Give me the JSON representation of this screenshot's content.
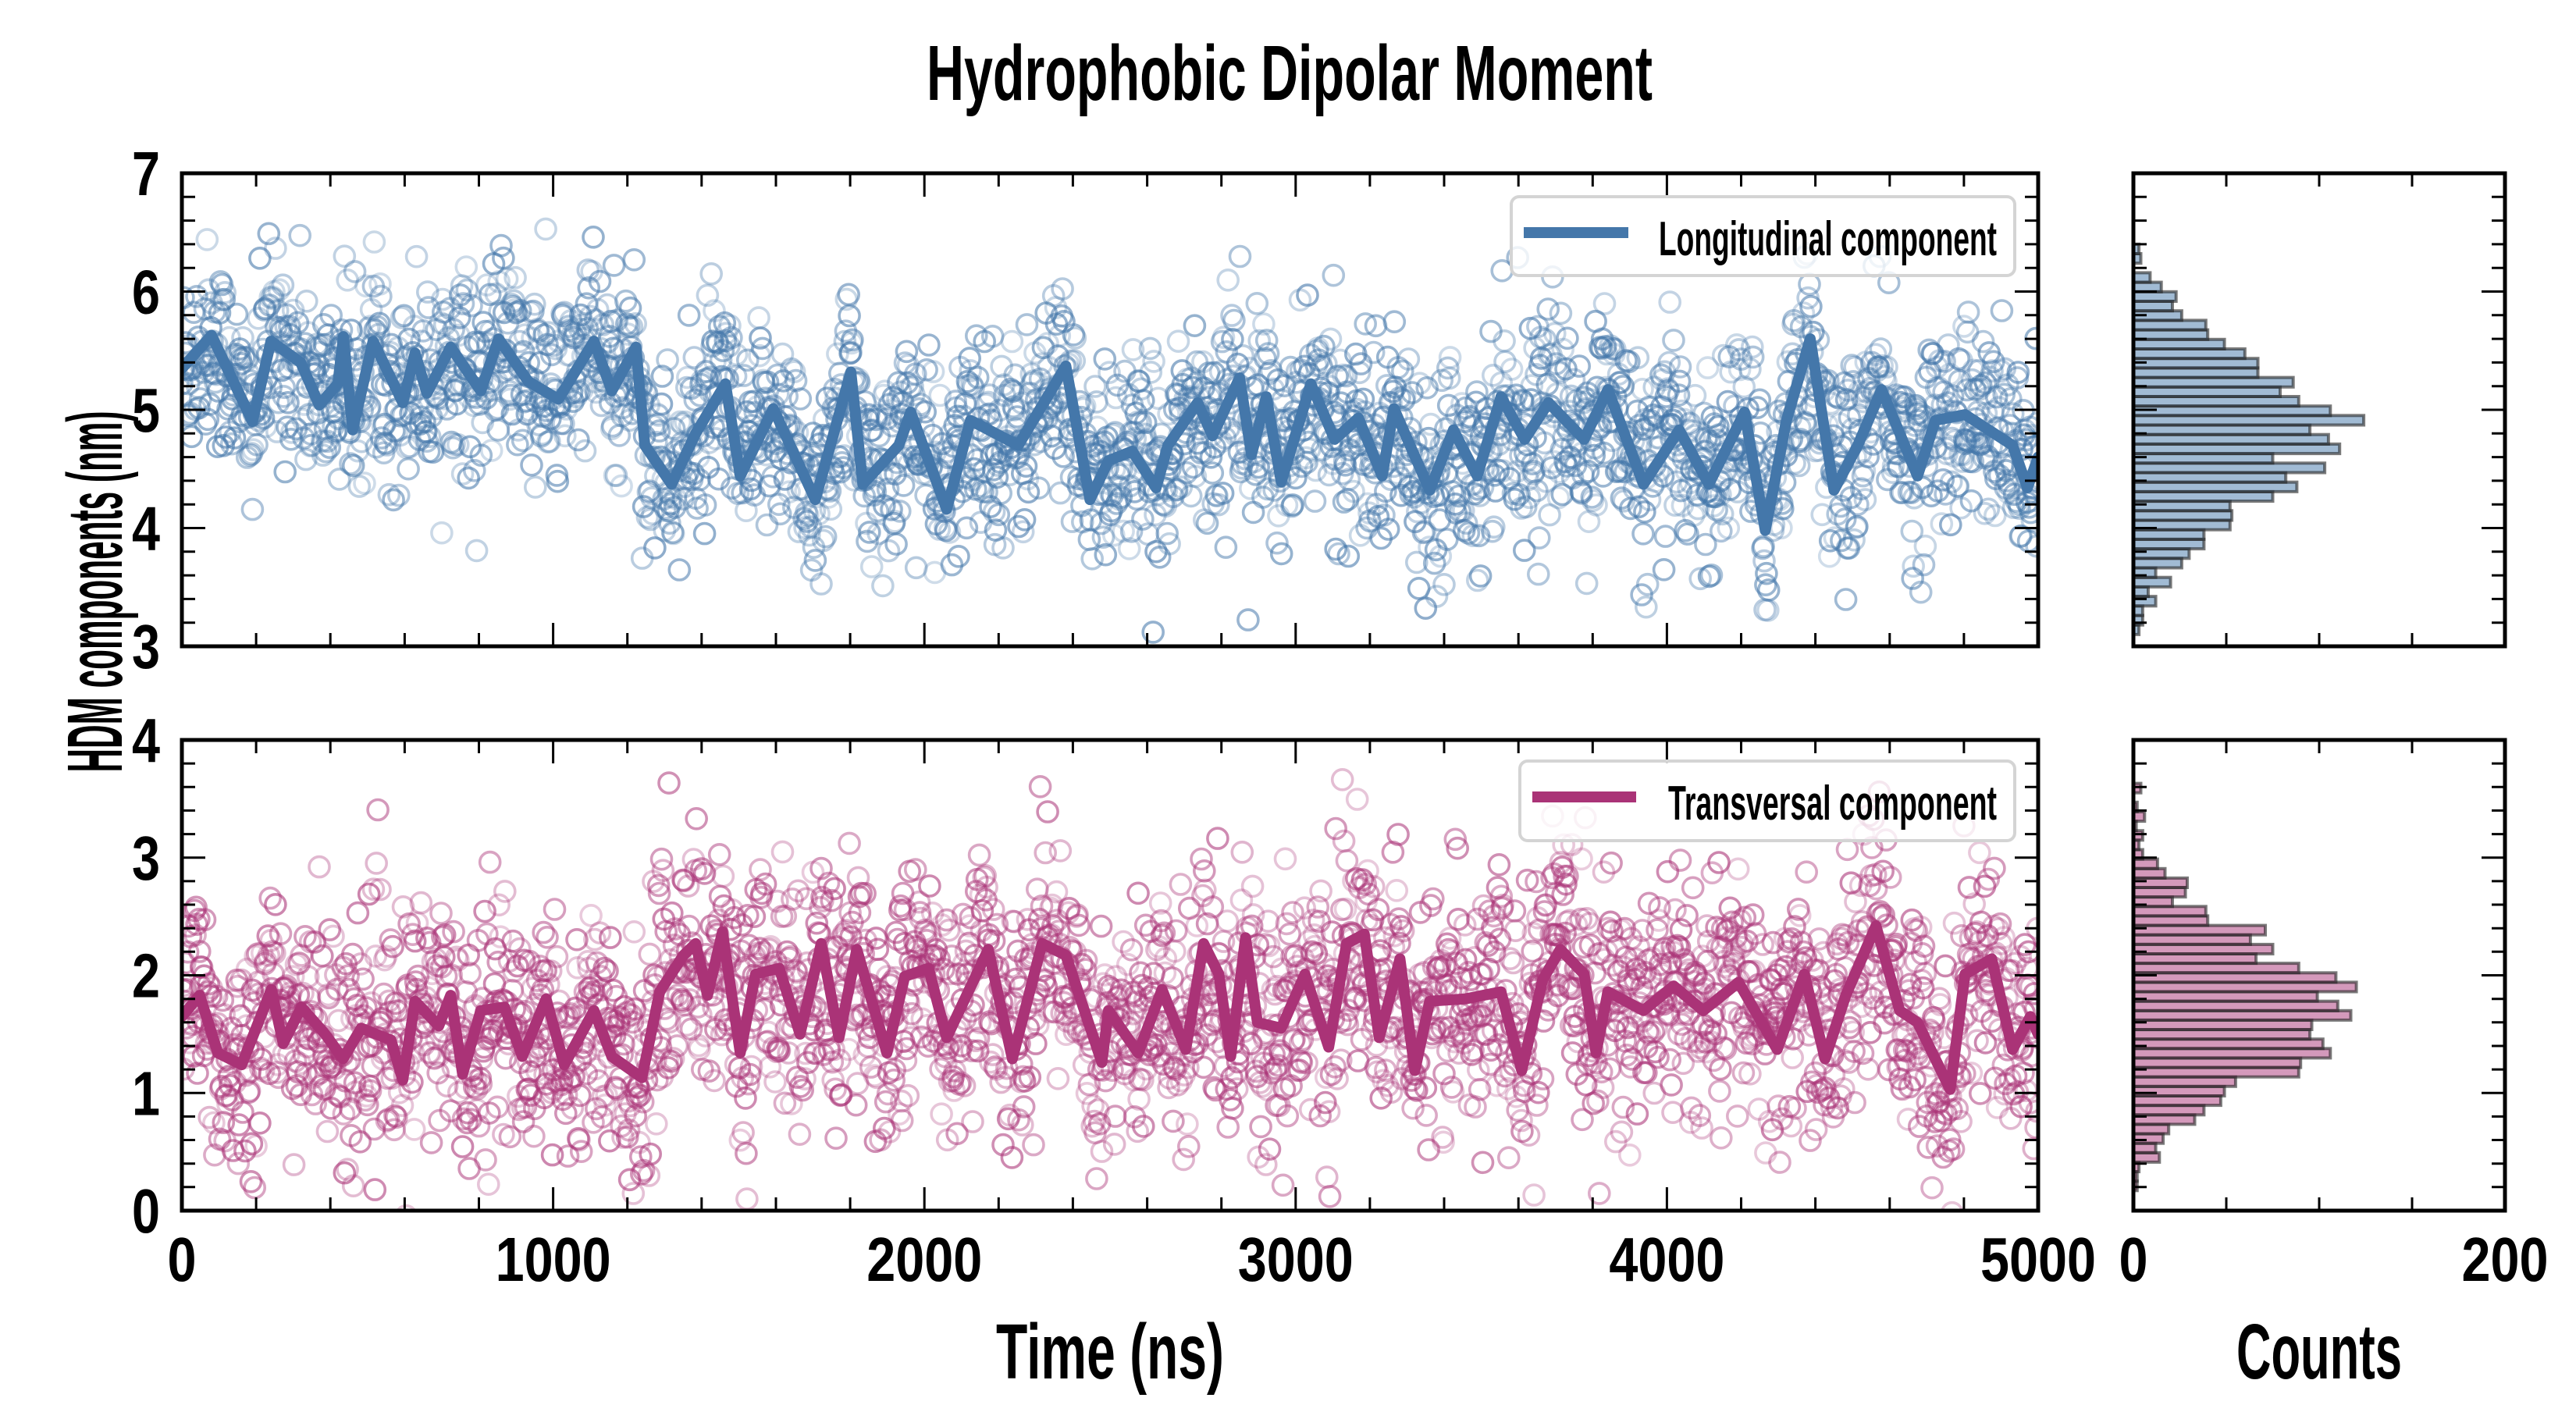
{
  "chart_data": [
    {
      "type": "scatter",
      "panel": "top-main",
      "title": "Hydrophobic Dipolar Moment",
      "xlabel": "Time (ns)",
      "ylabel": "HDM components (nm)",
      "xlim": [
        0,
        5000
      ],
      "ylim": [
        3,
        7
      ],
      "xticks": [
        "0",
        "1000",
        "2000",
        "3000",
        "4000",
        "5000"
      ],
      "yticks": [
        "3",
        "4",
        "5",
        "6",
        "7"
      ],
      "legend": {
        "label": "Longitudinal component",
        "placement": "top-right"
      },
      "color": "#4477aa",
      "scatter_spread": 0.42,
      "rolling_mean": {
        "x": [
          0,
          80,
          190,
          240,
          320,
          370,
          420,
          435,
          460,
          515,
          595,
          628,
          660,
          724,
          805,
          853,
          933,
          1014,
          1110,
          1158,
          1223,
          1247,
          1319,
          1384,
          1464,
          1504,
          1593,
          1706,
          1802,
          1834,
          1931,
          1963,
          2060,
          2124,
          2253,
          2381,
          2446,
          2496,
          2560,
          2624,
          2656,
          2736,
          2776,
          2849,
          2881,
          2921,
          2961,
          3041,
          3105,
          3169,
          3233,
          3265,
          3361,
          3425,
          3489,
          3553,
          3617,
          3681,
          3777,
          3841,
          3937,
          4033,
          4113,
          4209,
          4265,
          4322,
          4386,
          4450,
          4514,
          4578,
          4675,
          4723,
          4803,
          4867,
          4931,
          4971,
          5000
        ],
        "y": [
          5.35,
          5.63,
          4.9,
          5.58,
          5.4,
          5.04,
          5.22,
          5.62,
          4.83,
          5.58,
          5.06,
          5.48,
          5.14,
          5.53,
          5.16,
          5.6,
          5.24,
          5.09,
          5.58,
          5.16,
          5.53,
          4.7,
          4.37,
          4.8,
          5.22,
          4.44,
          5.01,
          4.24,
          5.32,
          4.37,
          4.7,
          4.98,
          4.16,
          4.91,
          4.7,
          5.37,
          4.24,
          4.57,
          4.65,
          4.34,
          4.7,
          5.06,
          4.78,
          5.27,
          4.62,
          5.11,
          4.39,
          5.22,
          4.75,
          4.93,
          4.44,
          5.01,
          4.32,
          4.83,
          4.44,
          5.11,
          4.75,
          5.06,
          4.75,
          5.17,
          4.37,
          4.83,
          4.37,
          4.98,
          3.98,
          4.91,
          5.6,
          4.32,
          4.7,
          5.17,
          4.44,
          4.91,
          4.96,
          4.83,
          4.7,
          4.34,
          4.6
        ]
      }
    },
    {
      "type": "bar",
      "panel": "top-hist",
      "orientation": "horizontal",
      "xlabel": "Counts",
      "xlim": [
        0,
        200
      ],
      "xticks": [
        "0",
        "200"
      ],
      "ylim": [
        3,
        7
      ],
      "color": "#4477aa",
      "bin_start": 3.1,
      "bin_width": 0.0805,
      "counts": [
        3,
        5,
        5,
        12,
        8,
        20,
        12,
        26,
        30,
        38,
        38,
        52,
        53,
        52,
        75,
        88,
        82,
        103,
        75,
        111,
        105,
        95,
        124,
        106,
        89,
        79,
        86,
        67,
        67,
        60,
        49,
        40,
        39,
        26,
        21,
        23,
        15,
        9,
        0,
        4,
        3
      ]
    },
    {
      "type": "scatter",
      "panel": "bottom-main",
      "xlabel": "Time (ns)",
      "xlim": [
        0,
        5000
      ],
      "ylim": [
        0,
        4
      ],
      "xticks": [
        "0",
        "1000",
        "2000",
        "3000",
        "4000",
        "5000"
      ],
      "yticks": [
        "0",
        "1",
        "2",
        "3",
        "4"
      ],
      "legend": {
        "label": "Transversal component",
        "placement": "top-right"
      },
      "color": "#aa3377",
      "scatter_spread": 0.5,
      "rolling_mean": {
        "x": [
          0,
          48,
          97,
          161,
          241,
          273,
          322,
          386,
          434,
          483,
          563,
          595,
          628,
          692,
          724,
          756,
          805,
          869,
          917,
          981,
          1030,
          1110,
          1158,
          1239,
          1287,
          1351,
          1384,
          1416,
          1456,
          1504,
          1545,
          1609,
          1665,
          1722,
          1770,
          1818,
          1899,
          1947,
          2011,
          2060,
          2172,
          2237,
          2317,
          2381,
          2478,
          2496,
          2576,
          2640,
          2704,
          2752,
          2793,
          2825,
          2865,
          2897,
          2961,
          3025,
          3089,
          3137,
          3185,
          3225,
          3281,
          3321,
          3361,
          3457,
          3553,
          3609,
          3665,
          3713,
          3777,
          3809,
          3841,
          3937,
          4018,
          4098,
          4193,
          4297,
          4370,
          4426,
          4482,
          4563,
          4627,
          4675,
          4763,
          4803,
          4875,
          4931,
          4979,
          5000
        ],
        "y": [
          1.65,
          1.83,
          1.34,
          1.24,
          1.88,
          1.42,
          1.73,
          1.5,
          1.29,
          1.55,
          1.45,
          1.11,
          1.78,
          1.57,
          1.83,
          1.16,
          1.7,
          1.73,
          1.31,
          1.8,
          1.24,
          1.7,
          1.31,
          1.13,
          1.86,
          2.17,
          2.27,
          1.83,
          2.37,
          1.34,
          2.01,
          2.06,
          1.5,
          2.27,
          1.47,
          2.22,
          1.34,
          1.99,
          2.06,
          1.47,
          2.22,
          1.29,
          2.27,
          2.17,
          1.26,
          1.7,
          1.34,
          1.88,
          1.37,
          2.27,
          2.01,
          1.31,
          2.32,
          1.6,
          1.55,
          2.01,
          1.39,
          2.27,
          2.35,
          1.47,
          2.14,
          1.19,
          1.78,
          1.8,
          1.86,
          1.19,
          1.96,
          2.22,
          2.01,
          1.34,
          1.86,
          1.7,
          1.91,
          1.7,
          1.94,
          1.37,
          2.01,
          1.29,
          1.83,
          2.42,
          1.7,
          1.6,
          1.03,
          2.01,
          2.14,
          1.37,
          1.65,
          1.5
        ]
      }
    },
    {
      "type": "bar",
      "panel": "bottom-hist",
      "orientation": "horizontal",
      "xlabel": "Counts",
      "xlim": [
        0,
        200
      ],
      "xticks": [
        "0",
        "200"
      ],
      "ylim": [
        0,
        4
      ],
      "color": "#aa3377",
      "bin_start": 0.17,
      "bin_width": 0.0805,
      "counts": [
        2,
        2,
        3,
        14,
        12,
        16,
        19,
        33,
        38,
        47,
        49,
        55,
        89,
        90,
        106,
        102,
        95,
        96,
        117,
        110,
        99,
        120,
        109,
        89,
        66,
        75,
        63,
        71,
        40,
        39,
        21,
        28,
        29,
        17,
        13,
        5,
        3,
        5,
        1.5,
        6,
        2,
        0,
        4
      ]
    }
  ],
  "figure": {
    "title": "Hydrophobic Dipolar Moment",
    "ylabel": "HDM components (nm)",
    "xlabel_main": "Time (ns)",
    "xlabel_hist": "Counts",
    "legend_top": "Longitudinal component",
    "legend_bottom": "Transversal component"
  }
}
